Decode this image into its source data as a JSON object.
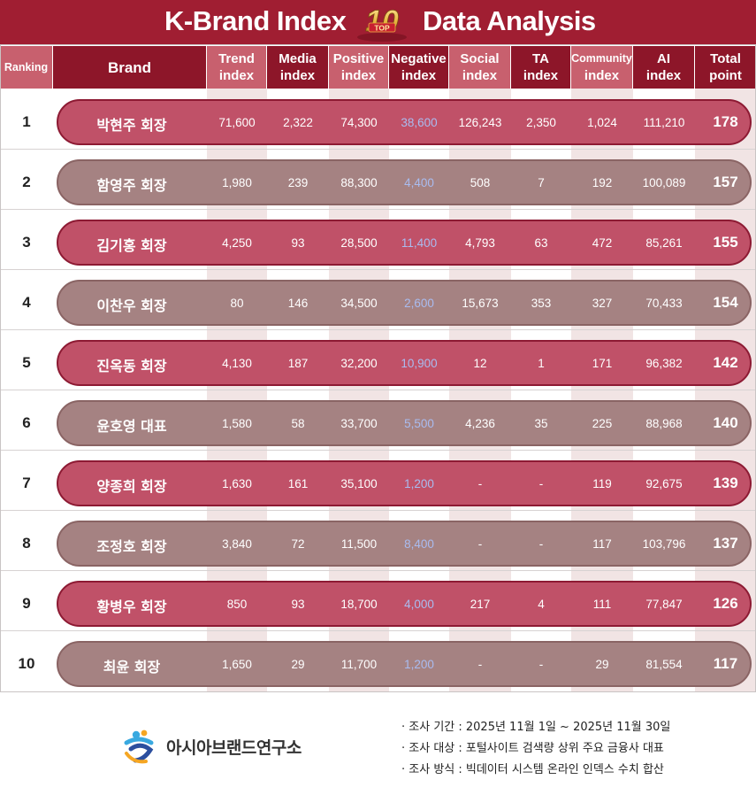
{
  "title": {
    "left": "K-Brand Index",
    "right": "Data Analysis",
    "badge_number": "10",
    "badge_text": "TOP"
  },
  "colors": {
    "title_bar": "#a01e32",
    "header": "#8d1629",
    "header_alt": "#c8606e",
    "pill_odd": "#c05168",
    "pill_even": "#a58282",
    "negative_text": "#a9bcf0"
  },
  "chart_data": {
    "type": "table",
    "columns": [
      {
        "key": "ranking",
        "lines": [
          "Ranking"
        ]
      },
      {
        "key": "brand",
        "lines": [
          "Brand"
        ]
      },
      {
        "key": "trend",
        "lines": [
          "Trend",
          "index"
        ]
      },
      {
        "key": "media",
        "lines": [
          "Media",
          "index"
        ]
      },
      {
        "key": "positive",
        "lines": [
          "Positive",
          "index"
        ]
      },
      {
        "key": "negative",
        "lines": [
          "Negative",
          "index"
        ]
      },
      {
        "key": "social",
        "lines": [
          "Social",
          "index"
        ]
      },
      {
        "key": "ta",
        "lines": [
          "TA",
          "index"
        ]
      },
      {
        "key": "community",
        "lines": [
          "Community",
          "index"
        ]
      },
      {
        "key": "ai",
        "lines": [
          "AI",
          "index"
        ]
      },
      {
        "key": "total",
        "lines": [
          "Total",
          "point"
        ]
      }
    ],
    "rows": [
      {
        "rank": "1",
        "brand": "박현주 회장",
        "trend": "71,600",
        "media": "2,322",
        "positive": "74,300",
        "negative": "38,600",
        "social": "126,243",
        "ta": "2,350",
        "community": "1,024",
        "ai": "111,210",
        "total": "178"
      },
      {
        "rank": "2",
        "brand": "함영주 회장",
        "trend": "1,980",
        "media": "239",
        "positive": "88,300",
        "negative": "4,400",
        "social": "508",
        "ta": "7",
        "community": "192",
        "ai": "100,089",
        "total": "157"
      },
      {
        "rank": "3",
        "brand": "김기홍 회장",
        "trend": "4,250",
        "media": "93",
        "positive": "28,500",
        "negative": "11,400",
        "social": "4,793",
        "ta": "63",
        "community": "472",
        "ai": "85,261",
        "total": "155"
      },
      {
        "rank": "4",
        "brand": "이찬우 회장",
        "trend": "80",
        "media": "146",
        "positive": "34,500",
        "negative": "2,600",
        "social": "15,673",
        "ta": "353",
        "community": "327",
        "ai": "70,433",
        "total": "154"
      },
      {
        "rank": "5",
        "brand": "진옥동 회장",
        "trend": "4,130",
        "media": "187",
        "positive": "32,200",
        "negative": "10,900",
        "social": "12",
        "ta": "1",
        "community": "171",
        "ai": "96,382",
        "total": "142"
      },
      {
        "rank": "6",
        "brand": "윤호영 대표",
        "trend": "1,580",
        "media": "58",
        "positive": "33,700",
        "negative": "5,500",
        "social": "4,236",
        "ta": "35",
        "community": "225",
        "ai": "88,968",
        "total": "140"
      },
      {
        "rank": "7",
        "brand": "양종희 회장",
        "trend": "1,630",
        "media": "161",
        "positive": "35,100",
        "negative": "1,200",
        "social": "-",
        "ta": "-",
        "community": "119",
        "ai": "92,675",
        "total": "139"
      },
      {
        "rank": "8",
        "brand": "조정호 회장",
        "trend": "3,840",
        "media": "72",
        "positive": "11,500",
        "negative": "8,400",
        "social": "-",
        "ta": "-",
        "community": "117",
        "ai": "103,796",
        "total": "137"
      },
      {
        "rank": "9",
        "brand": "황병우 회장",
        "trend": "850",
        "media": "93",
        "positive": "18,700",
        "negative": "4,000",
        "social": "217",
        "ta": "4",
        "community": "111",
        "ai": "77,847",
        "total": "126"
      },
      {
        "rank": "10",
        "brand": "최윤 회장",
        "trend": "1,650",
        "media": "29",
        "positive": "11,700",
        "negative": "1,200",
        "social": "-",
        "ta": "-",
        "community": "29",
        "ai": "81,554",
        "total": "117"
      }
    ]
  },
  "footer": {
    "logo_text": "아시아브랜드연구소",
    "notes": [
      "· 조사 기간 : 2025년 11월 1일 ~ 2025년 11월 30일",
      "· 조사 대상 : 포털사이트 검색량 상위 주요 금융사 대표",
      "· 조사 방식 : 빅데이터 시스템 온라인 인덱스 수치 합산"
    ]
  }
}
